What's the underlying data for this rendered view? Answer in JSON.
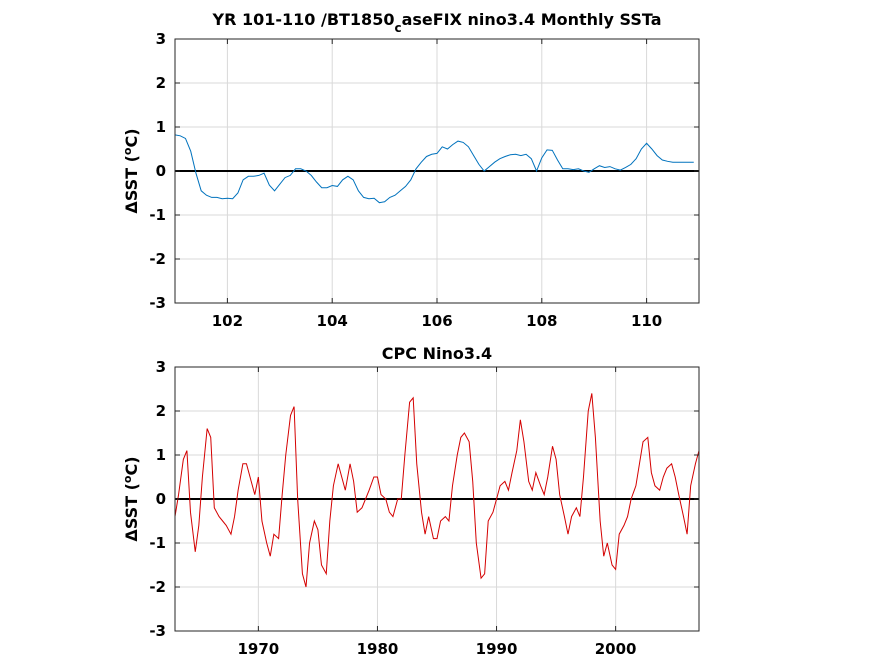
{
  "chart_data": [
    {
      "type": "line",
      "title_main": "YR 101-110 /BT1850",
      "title_sub": "c",
      "title_rest": "aseFIX nino3.4 Monthly SSTa",
      "ylabel_prefix": "ΔSST (",
      "ylabel_sup": "o",
      "ylabel_suffix": "C)",
      "xlim": [
        101,
        111
      ],
      "ylim": [
        -3,
        3
      ],
      "xticks": [
        102,
        104,
        106,
        108,
        110
      ],
      "xtick_labels": [
        "102",
        "104",
        "106",
        "108",
        "110"
      ],
      "yticks": [
        -3,
        -2,
        -1,
        0,
        1,
        2,
        3
      ],
      "ytick_labels": [
        "-3",
        "-2",
        "-1",
        "0",
        "1",
        "2",
        "3"
      ],
      "grid": true,
      "zero_line": true,
      "line_color": "#0072bd",
      "zero_color": "#000000",
      "series": [
        {
          "x": [
            101.0,
            101.1,
            101.2,
            101.3,
            101.4,
            101.5,
            101.6,
            101.7,
            101.8,
            101.9,
            102.0,
            102.1,
            102.2,
            102.3,
            102.4,
            102.5,
            102.6,
            102.7,
            102.8,
            102.9,
            103.0,
            103.1,
            103.2,
            103.3,
            103.4,
            103.5,
            103.6,
            103.7,
            103.8,
            103.9,
            104.0,
            104.1,
            104.2,
            104.3,
            104.4,
            104.5,
            104.6,
            104.7,
            104.8,
            104.9,
            105.0,
            105.1,
            105.2,
            105.3,
            105.4,
            105.5,
            105.6,
            105.7,
            105.8,
            105.9,
            106.0,
            106.1,
            106.2,
            106.3,
            106.4,
            106.5,
            106.6,
            106.7,
            106.8,
            106.9,
            107.0,
            107.1,
            107.2,
            107.3,
            107.4,
            107.5,
            107.6,
            107.7,
            107.8,
            107.9,
            108.0,
            108.1,
            108.2,
            108.3,
            108.4,
            108.5,
            108.6,
            108.7,
            108.8,
            108.9,
            109.0,
            109.1,
            109.2,
            109.3,
            109.4,
            109.5,
            109.6,
            109.7,
            109.8,
            109.9,
            110.0,
            110.1,
            110.2,
            110.3,
            110.4,
            110.5,
            110.6,
            110.7,
            110.8,
            110.9
          ],
          "y": [
            0.82,
            0.8,
            0.74,
            0.45,
            -0.05,
            -0.45,
            -0.55,
            -0.6,
            -0.6,
            -0.63,
            -0.62,
            -0.63,
            -0.5,
            -0.2,
            -0.12,
            -0.12,
            -0.1,
            -0.05,
            -0.32,
            -0.45,
            -0.3,
            -0.15,
            -0.1,
            0.05,
            0.05,
            0.0,
            -0.1,
            -0.25,
            -0.38,
            -0.38,
            -0.33,
            -0.35,
            -0.2,
            -0.12,
            -0.2,
            -0.45,
            -0.6,
            -0.63,
            -0.62,
            -0.72,
            -0.7,
            -0.6,
            -0.55,
            -0.45,
            -0.35,
            -0.2,
            0.05,
            0.2,
            0.33,
            0.38,
            0.4,
            0.55,
            0.5,
            0.6,
            0.68,
            0.65,
            0.55,
            0.35,
            0.15,
            0.0,
            0.1,
            0.2,
            0.28,
            0.33,
            0.37,
            0.38,
            0.35,
            0.38,
            0.28,
            0.0,
            0.3,
            0.48,
            0.47,
            0.25,
            0.05,
            0.05,
            0.03,
            0.05,
            0.0,
            -0.03,
            0.05,
            0.12,
            0.08,
            0.1,
            0.05,
            0.02,
            0.08,
            0.15,
            0.28,
            0.5,
            0.63,
            0.5,
            0.35,
            0.25,
            0.22,
            0.2,
            0.2,
            0.2,
            0.2,
            0.2
          ]
        }
      ]
    },
    {
      "type": "line",
      "title": "CPC Nino3.4",
      "ylabel_prefix": "ΔSST (",
      "ylabel_sup": "o",
      "ylabel_suffix": "C)",
      "xlim": [
        1963,
        2007
      ],
      "ylim": [
        -3,
        3
      ],
      "xticks": [
        1970,
        1980,
        1990,
        2000
      ],
      "xtick_labels": [
        "1970",
        "1980",
        "1990",
        "2000"
      ],
      "yticks": [
        -3,
        -2,
        -1,
        0,
        1,
        2,
        3
      ],
      "ytick_labels": [
        "-3",
        "-2",
        "-1",
        "0",
        "1",
        "2",
        "3"
      ],
      "grid": true,
      "zero_line": true,
      "line_color": "#d40000",
      "zero_color": "#000000",
      "series": [
        {
          "x": [
            1963.0,
            1963.3,
            1963.7,
            1964.0,
            1964.3,
            1964.7,
            1965.0,
            1965.3,
            1965.7,
            1966.0,
            1966.3,
            1966.7,
            1967.0,
            1967.3,
            1967.7,
            1968.0,
            1968.3,
            1968.7,
            1969.0,
            1969.3,
            1969.7,
            1970.0,
            1970.3,
            1970.7,
            1971.0,
            1971.3,
            1971.7,
            1972.0,
            1972.3,
            1972.7,
            1973.0,
            1973.3,
            1973.7,
            1974.0,
            1974.3,
            1974.7,
            1975.0,
            1975.3,
            1975.7,
            1976.0,
            1976.3,
            1976.7,
            1977.0,
            1977.3,
            1977.7,
            1978.0,
            1978.3,
            1978.7,
            1979.0,
            1979.3,
            1979.7,
            1980.0,
            1980.3,
            1980.7,
            1981.0,
            1981.3,
            1981.7,
            1982.0,
            1982.3,
            1982.7,
            1983.0,
            1983.3,
            1983.7,
            1984.0,
            1984.3,
            1984.7,
            1985.0,
            1985.3,
            1985.7,
            1986.0,
            1986.3,
            1986.7,
            1987.0,
            1987.3,
            1987.7,
            1988.0,
            1988.3,
            1988.7,
            1989.0,
            1989.3,
            1989.7,
            1990.0,
            1990.3,
            1990.7,
            1991.0,
            1991.3,
            1991.7,
            1992.0,
            1992.3,
            1992.7,
            1993.0,
            1993.3,
            1993.7,
            1994.0,
            1994.3,
            1994.7,
            1995.0,
            1995.3,
            1995.7,
            1996.0,
            1996.3,
            1996.7,
            1997.0,
            1997.3,
            1997.7,
            1998.0,
            1998.3,
            1998.7,
            1999.0,
            1999.3,
            1999.7,
            2000.0,
            2000.3,
            2000.7,
            2001.0,
            2001.3,
            2001.7,
            2002.0,
            2002.3,
            2002.7,
            2003.0,
            2003.3,
            2003.7,
            2004.0,
            2004.3,
            2004.7,
            2005.0,
            2005.3,
            2005.7,
            2006.0,
            2006.3,
            2006.7,
            2007.0
          ],
          "y": [
            -0.4,
            0.1,
            0.9,
            1.1,
            -0.3,
            -1.2,
            -0.6,
            0.5,
            1.6,
            1.4,
            -0.2,
            -0.4,
            -0.5,
            -0.6,
            -0.8,
            -0.4,
            0.2,
            0.8,
            0.8,
            0.5,
            0.1,
            0.5,
            -0.5,
            -1.0,
            -1.3,
            -0.8,
            -0.9,
            0.1,
            1.0,
            1.9,
            2.1,
            0.0,
            -1.7,
            -2.0,
            -1.0,
            -0.5,
            -0.7,
            -1.5,
            -1.7,
            -0.5,
            0.3,
            0.8,
            0.5,
            0.2,
            0.8,
            0.4,
            -0.3,
            -0.2,
            0.0,
            0.2,
            0.5,
            0.5,
            0.1,
            0.0,
            -0.3,
            -0.4,
            0.0,
            0.0,
            1.0,
            2.2,
            2.3,
            0.8,
            -0.3,
            -0.8,
            -0.4,
            -0.9,
            -0.9,
            -0.5,
            -0.4,
            -0.5,
            0.3,
            1.0,
            1.4,
            1.5,
            1.3,
            0.4,
            -1.0,
            -1.8,
            -1.7,
            -0.5,
            -0.3,
            0.0,
            0.3,
            0.4,
            0.2,
            0.6,
            1.1,
            1.8,
            1.3,
            0.4,
            0.2,
            0.6,
            0.3,
            0.1,
            0.5,
            1.2,
            0.9,
            0.1,
            -0.4,
            -0.8,
            -0.4,
            -0.2,
            -0.4,
            0.5,
            2.0,
            2.4,
            1.4,
            -0.5,
            -1.3,
            -1.0,
            -1.5,
            -1.6,
            -0.8,
            -0.6,
            -0.4,
            0.0,
            0.3,
            0.8,
            1.3,
            1.4,
            0.6,
            0.3,
            0.2,
            0.5,
            0.7,
            0.8,
            0.5,
            0.1,
            -0.4,
            -0.8,
            0.3,
            0.8,
            1.1
          ]
        }
      ]
    }
  ]
}
